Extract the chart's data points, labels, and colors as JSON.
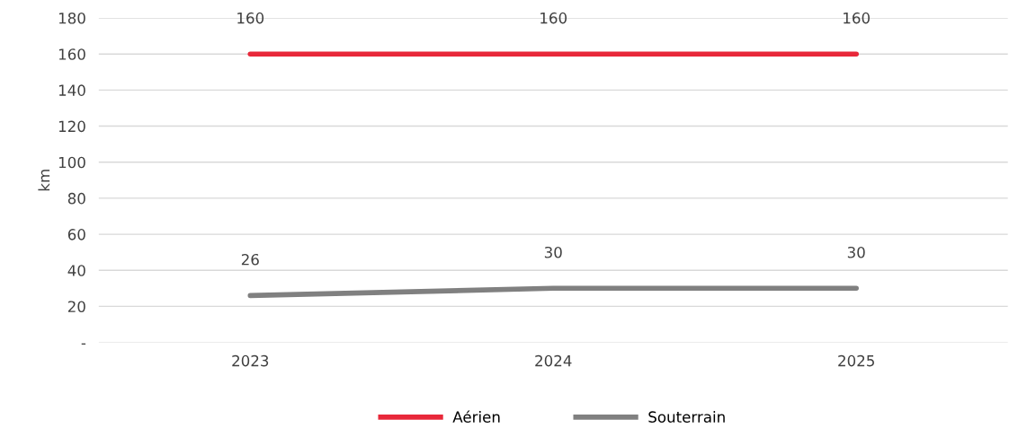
{
  "chart_data": {
    "type": "line",
    "ylabel": "km",
    "categories": [
      "2023",
      "2024",
      "2025"
    ],
    "series": [
      {
        "name": "Aérien",
        "color": "#e8283a",
        "values": [
          160,
          160,
          160
        ]
      },
      {
        "name": "Souterrain",
        "color": "#808080",
        "values": [
          26,
          30,
          30
        ]
      }
    ],
    "ylim": [
      0,
      180
    ],
    "yticks": [
      {
        "value": 0,
        "label": "-"
      },
      20,
      40,
      60,
      80,
      100,
      120,
      140,
      160,
      180
    ],
    "grid": "y",
    "legend": "bottom",
    "data_labels": true,
    "marker": "none",
    "line_style": "solid"
  }
}
